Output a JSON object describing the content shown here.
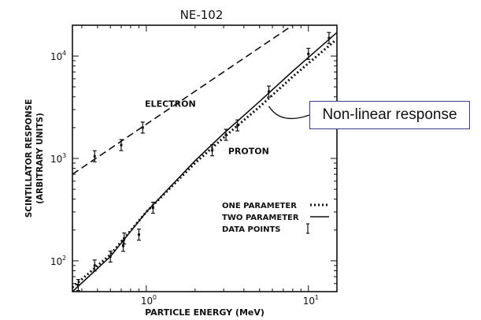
{
  "chart_data": {
    "type": "line",
    "title": "NE-102",
    "xlabel": "PARTICLE ENERGY (MeV)",
    "ylabel": "SCINTILLATOR RESPONSE",
    "ylabel2": "(ARBITRARY UNITS)",
    "xscale": "log",
    "yscale": "log",
    "xlim": [
      0.35,
      15
    ],
    "ylim": [
      50,
      20000
    ],
    "x_ticks": [
      {
        "value": 1,
        "label": "10",
        "exp": "0"
      },
      {
        "value": 10,
        "label": "10",
        "exp": "1"
      }
    ],
    "y_ticks": [
      {
        "value": 100,
        "label": "10",
        "exp": "2"
      },
      {
        "value": 1000,
        "label": "10",
        "exp": "3"
      },
      {
        "value": 10000,
        "label": "10",
        "exp": "4"
      }
    ],
    "series": [
      {
        "name": "ELECTRON",
        "style": "dashed",
        "x": [
          0.35,
          8
        ],
        "y": [
          700,
          20000
        ]
      },
      {
        "name": "TWO PARAMETER",
        "style": "solid",
        "x": [
          0.35,
          0.6,
          1.0,
          2.0,
          3.0,
          5.0,
          8.0,
          15.0
        ],
        "y": [
          50,
          110,
          300,
          950,
          1750,
          3600,
          7100,
          17000
        ]
      },
      {
        "name": "ONE PARAMETER",
        "style": "dotted",
        "x": [
          0.35,
          0.6,
          1.0,
          2.0,
          3.0,
          5.0,
          8.0,
          14.5
        ],
        "y": [
          55,
          115,
          300,
          900,
          1600,
          3200,
          6300,
          14000
        ]
      }
    ],
    "data_points": [
      {
        "x": 0.48,
        "y": 1050
      },
      {
        "x": 0.7,
        "y": 1350
      },
      {
        "x": 0.95,
        "y": 2000
      },
      {
        "x": 0.38,
        "y": 58
      },
      {
        "x": 0.48,
        "y": 90
      },
      {
        "x": 0.6,
        "y": 110
      },
      {
        "x": 0.72,
        "y": 140
      },
      {
        "x": 0.73,
        "y": 165
      },
      {
        "x": 0.9,
        "y": 180
      },
      {
        "x": 1.1,
        "y": 330
      },
      {
        "x": 2.55,
        "y": 1200
      },
      {
        "x": 3.1,
        "y": 1700
      },
      {
        "x": 3.65,
        "y": 2100
      },
      {
        "x": 5.7,
        "y": 4500
      },
      {
        "x": 10,
        "y": 10500
      },
      {
        "x": 13.4,
        "y": 15000
      }
    ],
    "annotations": [
      "ELECTRON",
      "PROTON"
    ],
    "legend": [
      {
        "label": "ONE PARAMETER",
        "style": "dotted"
      },
      {
        "label": "TWO PARAMETER",
        "style": "solid"
      },
      {
        "label": "DATA POINTS",
        "style": "errorbar"
      }
    ],
    "legend_position": "bottom-right",
    "grid": false
  },
  "callout": {
    "text": "Non-linear response",
    "border_color": "#3a3a8c"
  }
}
